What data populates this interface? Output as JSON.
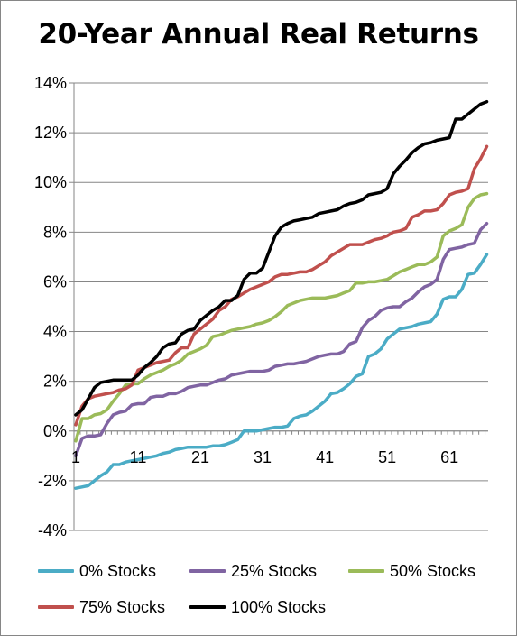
{
  "chart_data": {
    "type": "line",
    "title": "20-Year Annual Real Returns",
    "xlabel": "",
    "ylabel": "",
    "ylim": [
      -4,
      14
    ],
    "ytick_labels": [
      "14%",
      "12%",
      "10%",
      "8%",
      "6%",
      "4%",
      "2%",
      "0%",
      "-2%",
      "-4%"
    ],
    "ytick_values": [
      14,
      12,
      10,
      8,
      6,
      4,
      2,
      0,
      -2,
      -4
    ],
    "xlim": [
      1,
      67
    ],
    "xtick_labels": [
      "1",
      "11",
      "21",
      "31",
      "41",
      "51",
      "61"
    ],
    "xtick_values": [
      1,
      11,
      21,
      31,
      41,
      51,
      61
    ],
    "grid": "horizontal",
    "legend_position": "bottom",
    "series": [
      {
        "name": "0% Stocks",
        "color": "#4bacc6",
        "values": [
          -2.3,
          -2.25,
          -2.2,
          -2.0,
          -1.8,
          -1.65,
          -1.35,
          -1.35,
          -1.25,
          -1.2,
          -1.15,
          -1.1,
          -1.05,
          -1.0,
          -0.9,
          -0.85,
          -0.75,
          -0.7,
          -0.65,
          -0.65,
          -0.65,
          -0.65,
          -0.6,
          -0.6,
          -0.55,
          -0.45,
          -0.35,
          0.0,
          0.0,
          0.0,
          0.05,
          0.1,
          0.15,
          0.15,
          0.2,
          0.5,
          0.6,
          0.65,
          0.8,
          1.0,
          1.2,
          1.5,
          1.55,
          1.7,
          1.9,
          2.2,
          2.3,
          3.0,
          3.1,
          3.3,
          3.7,
          3.9,
          4.1,
          4.15,
          4.2,
          4.3,
          4.35,
          4.4,
          4.7,
          5.3,
          5.4,
          5.4,
          5.7,
          6.3,
          6.35,
          6.7,
          7.1
        ]
      },
      {
        "name": "25% Stocks",
        "color": "#8064a2",
        "values": [
          -1.0,
          -0.3,
          -0.2,
          -0.2,
          -0.15,
          0.3,
          0.65,
          0.75,
          0.8,
          1.05,
          1.1,
          1.1,
          1.35,
          1.4,
          1.4,
          1.5,
          1.5,
          1.6,
          1.75,
          1.8,
          1.85,
          1.85,
          1.95,
          2.05,
          2.1,
          2.25,
          2.3,
          2.35,
          2.4,
          2.4,
          2.4,
          2.45,
          2.6,
          2.65,
          2.7,
          2.7,
          2.75,
          2.8,
          2.9,
          3.0,
          3.05,
          3.1,
          3.1,
          3.2,
          3.5,
          3.6,
          4.15,
          4.45,
          4.6,
          4.85,
          4.95,
          5.0,
          5.0,
          5.2,
          5.35,
          5.6,
          5.8,
          5.9,
          6.1,
          6.9,
          7.3,
          7.35,
          7.4,
          7.5,
          7.55,
          8.1,
          8.35
        ]
      },
      {
        "name": "50% Stocks",
        "color": "#9bbb59",
        "values": [
          -0.4,
          0.5,
          0.5,
          0.65,
          0.7,
          0.85,
          1.2,
          1.5,
          1.85,
          1.9,
          1.9,
          2.1,
          2.25,
          2.35,
          2.45,
          2.6,
          2.7,
          2.85,
          3.1,
          3.2,
          3.3,
          3.45,
          3.8,
          3.85,
          3.95,
          4.05,
          4.1,
          4.15,
          4.2,
          4.3,
          4.35,
          4.45,
          4.6,
          4.8,
          5.05,
          5.15,
          5.25,
          5.3,
          5.35,
          5.35,
          5.35,
          5.4,
          5.45,
          5.55,
          5.65,
          5.95,
          5.95,
          6.0,
          6.0,
          6.05,
          6.1,
          6.25,
          6.4,
          6.5,
          6.6,
          6.7,
          6.7,
          6.8,
          7.0,
          7.85,
          8.05,
          8.15,
          8.3,
          9.0,
          9.35,
          9.5,
          9.55
        ]
      },
      {
        "name": "75% Stocks",
        "color": "#c0504d",
        "values": [
          0.25,
          1.0,
          1.3,
          1.4,
          1.45,
          1.5,
          1.55,
          1.65,
          1.7,
          1.85,
          2.45,
          2.55,
          2.65,
          2.75,
          2.8,
          2.85,
          3.15,
          3.35,
          3.35,
          3.9,
          4.1,
          4.3,
          4.5,
          4.85,
          5.0,
          5.3,
          5.4,
          5.55,
          5.7,
          5.8,
          5.9,
          6.0,
          6.2,
          6.3,
          6.3,
          6.35,
          6.4,
          6.4,
          6.5,
          6.65,
          6.8,
          7.05,
          7.2,
          7.35,
          7.5,
          7.5,
          7.5,
          7.6,
          7.7,
          7.75,
          7.85,
          8.0,
          8.05,
          8.15,
          8.6,
          8.7,
          8.85,
          8.85,
          8.9,
          9.15,
          9.5,
          9.6,
          9.65,
          9.75,
          10.55,
          10.95,
          11.45
        ]
      },
      {
        "name": "100% Stocks",
        "color": "#000000",
        "values": [
          0.65,
          0.85,
          1.3,
          1.75,
          1.95,
          2.0,
          2.05,
          2.05,
          2.05,
          2.05,
          2.25,
          2.55,
          2.75,
          3.0,
          3.35,
          3.5,
          3.55,
          3.9,
          4.05,
          4.1,
          4.45,
          4.65,
          4.85,
          5.0,
          5.25,
          5.25,
          5.45,
          6.1,
          6.35,
          6.35,
          6.55,
          7.2,
          7.85,
          8.2,
          8.35,
          8.45,
          8.5,
          8.55,
          8.6,
          8.75,
          8.8,
          8.85,
          8.9,
          9.05,
          9.15,
          9.2,
          9.3,
          9.5,
          9.55,
          9.6,
          9.75,
          10.35,
          10.65,
          10.9,
          11.2,
          11.4,
          11.55,
          11.6,
          11.7,
          11.75,
          11.8,
          12.55,
          12.55,
          12.75,
          12.95,
          13.15,
          13.25
        ]
      }
    ]
  }
}
